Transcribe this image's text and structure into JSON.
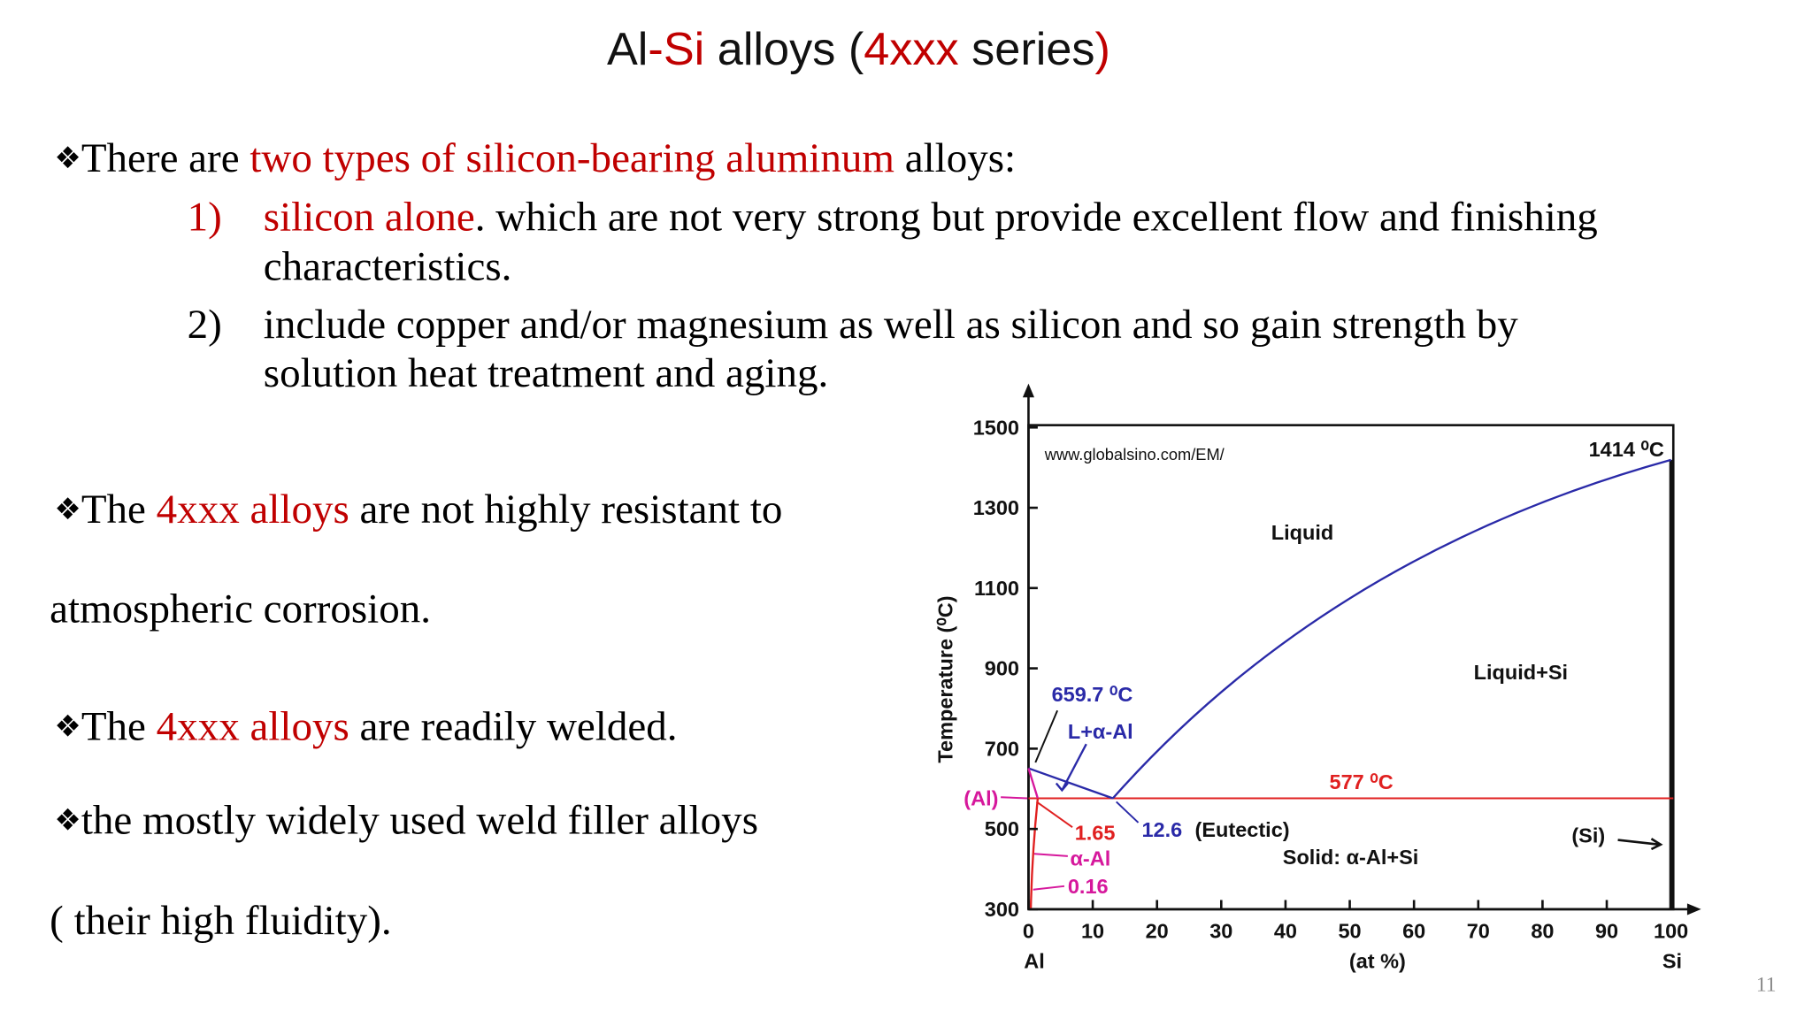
{
  "title": [
    "Al",
    "-Si",
    " alloys (",
    "4xxx",
    " series",
    ")"
  ],
  "bullet": "❖",
  "bullets": [
    {
      "text": [
        "There are ",
        "two types of silicon-bearing aluminum",
        " alloys:"
      ],
      "items": [
        {
          "marker": "1)",
          "text": [
            "silicon alone",
            ". which are not very strong but provide excellent flow and finishing"
          ],
          "continuation": "characteristics."
        },
        {
          "marker": "2)",
          "text": [
            "include copper and/or magnesium as well as silicon and so gain strength by"
          ],
          "continuation": "solution heat treatment and aging."
        }
      ]
    },
    {
      "text": [
        "The ",
        "4xxx alloys",
        " are not highly resistant to"
      ],
      "continuation": "atmospheric corrosion."
    },
    {
      "text": [
        "The ",
        "4xxx alloys",
        " are readily welded."
      ]
    },
    {
      "text": [
        "the mostly widely used weld filler alloys"
      ],
      "continuation": "( their high fluidity)."
    }
  ],
  "figure": {
    "source": "www.globalsino.com/EM/",
    "y_label": "Temperature (⁰C)",
    "x_label": "(at %)",
    "x_left_label": "Al",
    "x_right_label": "Si",
    "xlim": [
      0,
      100
    ],
    "ylim": [
      300,
      1500
    ],
    "xticks": [
      0,
      10,
      20,
      30,
      40,
      50,
      60,
      70,
      80,
      90,
      100
    ],
    "yticks": [
      300,
      500,
      700,
      900,
      1100,
      1300,
      1500
    ],
    "annotations": {
      "si_melt": "1414 ⁰C",
      "liquid": "Liquid",
      "liquid_si": "Liquid+Si",
      "al_melt": "659.7 ⁰C",
      "l_alpha": "L+α-Al",
      "eutectic_temp": "577 ⁰C",
      "al_phase": "(Al)",
      "max_solubility": "1.65",
      "eutectic_comp": "12.6",
      "eutectic": "(Eutectic)",
      "alpha_al": "α-Al",
      "min_solubility": "0.16",
      "solid": "Solid: α-Al+Si",
      "si_phase": "(Si)"
    }
  },
  "page_number": "11"
}
